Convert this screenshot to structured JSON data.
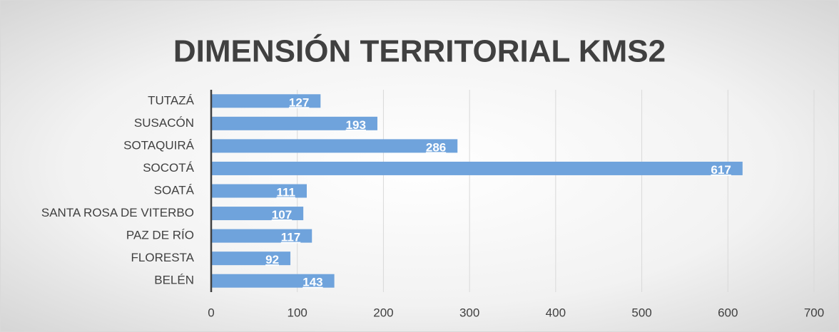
{
  "chart_data": {
    "type": "hbar",
    "title": "DIMENSIÓN TERRITORIAL  KMS2",
    "categories": [
      "TUTAZÁ",
      "SUSACÓN",
      "SOTAQUIRÁ",
      "SOCOTÁ",
      "SOATÁ",
      "SANTA ROSA DE VITERBO",
      "PAZ DE RÍO",
      "FLORESTA",
      "BELÉN"
    ],
    "values": [
      127,
      193,
      286,
      617,
      111,
      107,
      117,
      92,
      143
    ],
    "color": "#6fa3dc",
    "xlim": [
      0,
      700
    ],
    "xticks": [
      0,
      100,
      200,
      300,
      400,
      500,
      600,
      700
    ],
    "grid": true
  }
}
